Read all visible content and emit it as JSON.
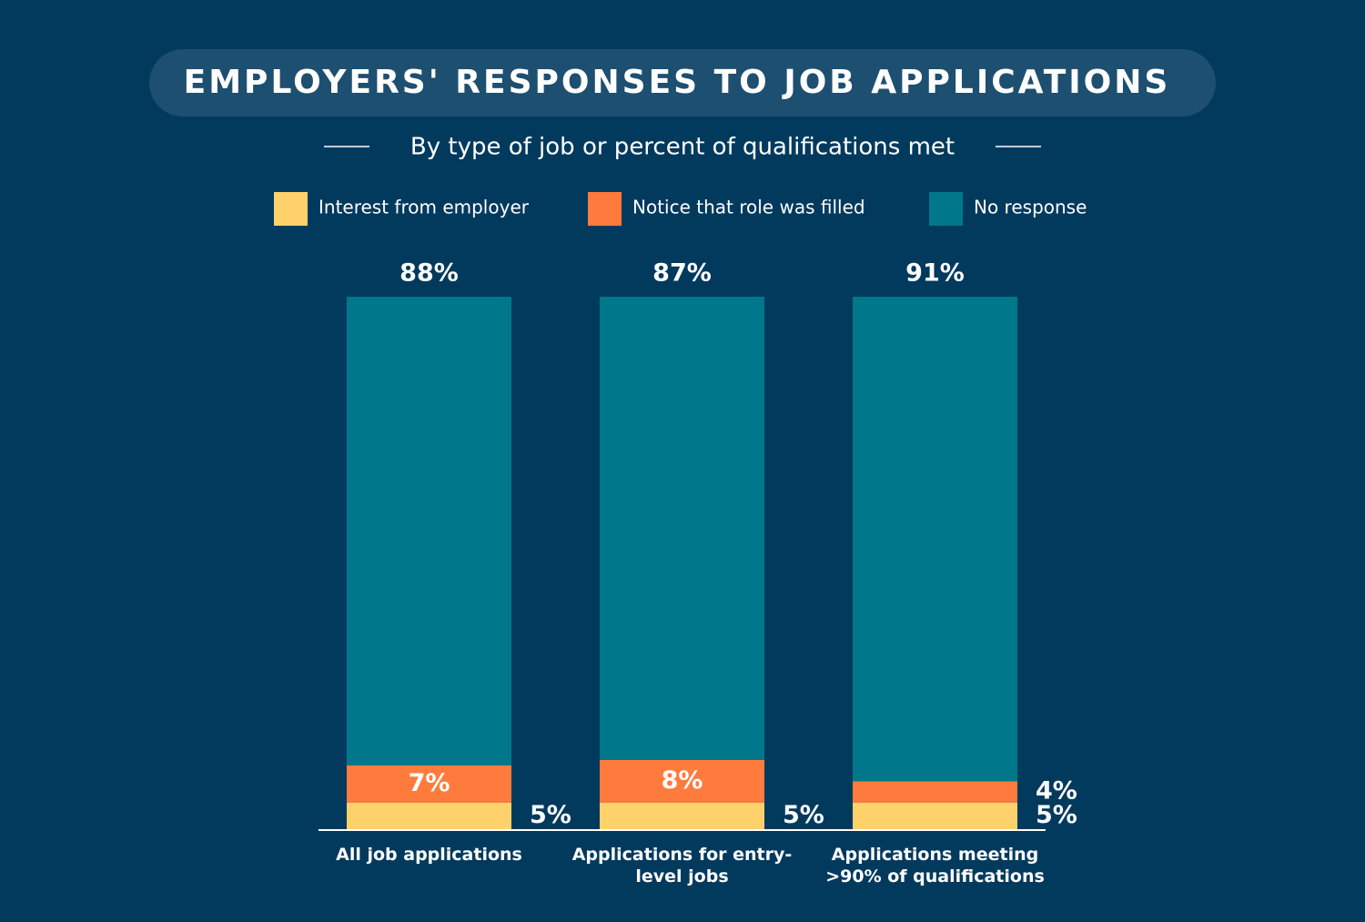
{
  "chart_data": {
    "type": "stacked_bar",
    "title": "EMPLOYERS' RESPONSES TO JOB APPLICATIONS",
    "subtitle": "By type of job or percent of qualifications met",
    "categories": [
      "All job applications",
      "Applications for entry-level jobs",
      "Applications meeting >90% of qualifications"
    ],
    "series": [
      {
        "name": "Interest from employer",
        "color": "#ffd16b",
        "values": [
          5,
          5,
          5
        ],
        "value_labels": [
          "5%",
          "5%",
          "5%"
        ]
      },
      {
        "name": "Notice that role was filled",
        "color": "#ff7b3d",
        "values": [
          7,
          8,
          4
        ],
        "value_labels": [
          "7%",
          "8%",
          "4%"
        ]
      },
      {
        "name": "No response",
        "color": "#00778b",
        "values": [
          88,
          87,
          91
        ],
        "value_labels": [
          "88%",
          "87%",
          "91%"
        ]
      }
    ],
    "ylim": [
      0,
      100
    ]
  }
}
